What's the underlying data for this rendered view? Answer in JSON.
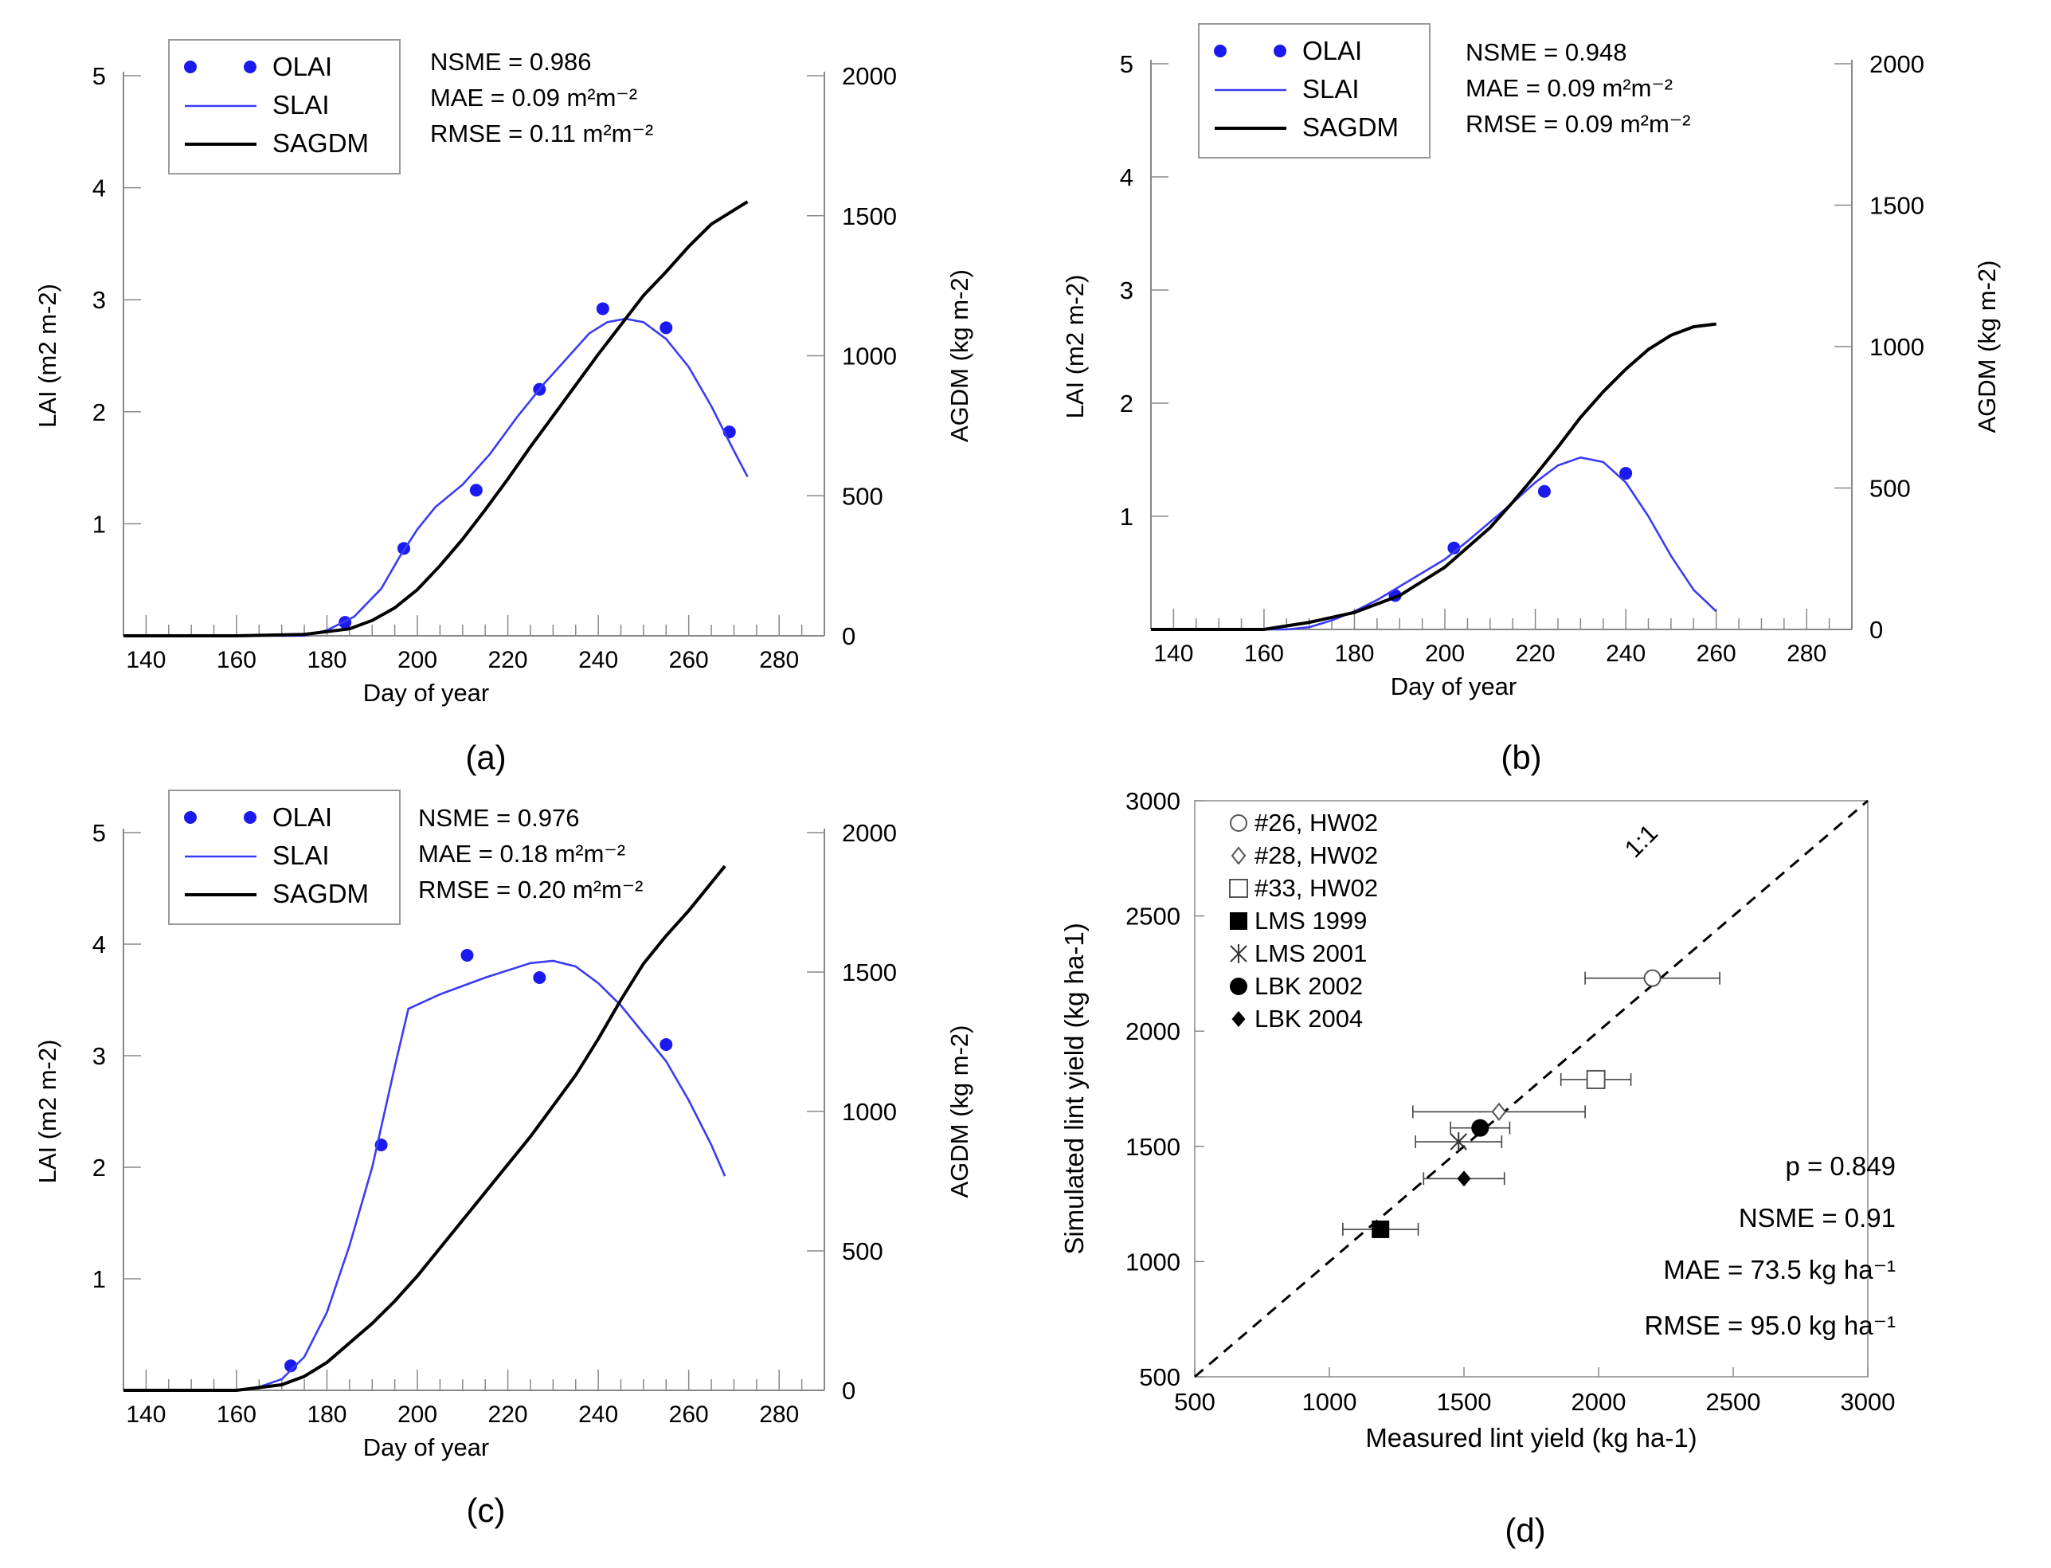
{
  "figure": {
    "panels": [
      "(a)",
      "(b)",
      "(c)",
      "(d)"
    ]
  },
  "colors": {
    "observed": "#1a1aee",
    "slai": "#3b3bf5",
    "sagdm": "#000000",
    "axis": "#888888"
  },
  "chart_data": [
    {
      "id": "a",
      "type": "line",
      "panel_label": "(a)",
      "xlabel": "Day of year",
      "ylabel_left": "LAI (m2 m-2)",
      "ylabel_right": "AGDM (kg m-2)",
      "xlim": [
        135,
        290
      ],
      "ylim_left": [
        0,
        5
      ],
      "ylim_right": [
        0,
        2000
      ],
      "xticks": [
        140,
        160,
        180,
        200,
        220,
        240,
        260,
        280
      ],
      "yticks_left": [
        1,
        2,
        3,
        4,
        5
      ],
      "yticks_right": [
        0,
        500,
        1000,
        1500,
        2000
      ],
      "legend": [
        "OLAI",
        "SLAI",
        "SAGDM"
      ],
      "stats": [
        "NSME = 0.986",
        "MAE = 0.09 m²m⁻²",
        "RMSE = 0.11 m²m⁻²"
      ],
      "series": [
        {
          "name": "OLAI",
          "kind": "points",
          "axis": "left",
          "x": [
            184,
            197,
            213,
            227,
            241,
            255,
            269
          ],
          "y": [
            0.12,
            0.78,
            1.3,
            2.2,
            2.92,
            2.75,
            1.82
          ]
        },
        {
          "name": "SLAI",
          "kind": "line",
          "axis": "left",
          "x": [
            135,
            160,
            175,
            180,
            186,
            192,
            196,
            200,
            204,
            210,
            216,
            222,
            228,
            234,
            238,
            242,
            246,
            250,
            255,
            260,
            265,
            270,
            273
          ],
          "y": [
            0,
            0,
            0,
            0.05,
            0.17,
            0.42,
            0.7,
            0.95,
            1.15,
            1.35,
            1.62,
            1.95,
            2.25,
            2.52,
            2.7,
            2.8,
            2.83,
            2.8,
            2.65,
            2.4,
            2.05,
            1.65,
            1.42
          ]
        },
        {
          "name": "SAGDM",
          "kind": "line",
          "axis": "right",
          "x": [
            135,
            160,
            175,
            185,
            190,
            195,
            200,
            205,
            210,
            215,
            220,
            225,
            230,
            235,
            240,
            245,
            250,
            255,
            260,
            265,
            270,
            273
          ],
          "y": [
            0,
            0,
            5,
            25,
            55,
            100,
            165,
            250,
            345,
            450,
            560,
            675,
            785,
            895,
            1005,
            1110,
            1215,
            1300,
            1390,
            1470,
            1520,
            1550
          ]
        }
      ]
    },
    {
      "id": "b",
      "type": "line",
      "panel_label": "(b)",
      "xlabel": "Day of year",
      "ylabel_left": "LAI (m2 m-2)",
      "ylabel_right": "AGDM (kg m-2)",
      "xlim": [
        135,
        290
      ],
      "ylim_left": [
        0,
        5
      ],
      "ylim_right": [
        0,
        2000
      ],
      "xticks": [
        140,
        160,
        180,
        200,
        220,
        240,
        260,
        280
      ],
      "yticks_left": [
        1,
        2,
        3,
        4,
        5
      ],
      "yticks_right": [
        0,
        500,
        1000,
        1500,
        2000
      ],
      "legend": [
        "OLAI",
        "SLAI",
        "SAGDM"
      ],
      "stats": [
        "NSME = 0.948",
        "MAE = 0.09 m²m⁻²",
        "RMSE = 0.09 m²m⁻²"
      ],
      "series": [
        {
          "name": "OLAI",
          "kind": "points",
          "axis": "left",
          "x": [
            189,
            202,
            222,
            240
          ],
          "y": [
            0.3,
            0.72,
            1.22,
            1.38
          ]
        },
        {
          "name": "SLAI",
          "kind": "line",
          "axis": "left",
          "x": [
            135,
            165,
            170,
            175,
            180,
            185,
            190,
            195,
            200,
            205,
            210,
            215,
            220,
            225,
            230,
            235,
            240,
            245,
            250,
            255,
            260
          ],
          "y": [
            0,
            0,
            0.02,
            0.08,
            0.16,
            0.26,
            0.38,
            0.5,
            0.62,
            0.78,
            0.95,
            1.12,
            1.3,
            1.45,
            1.52,
            1.48,
            1.3,
            1.0,
            0.65,
            0.35,
            0.16
          ]
        },
        {
          "name": "SAGDM",
          "kind": "line",
          "axis": "right",
          "x": [
            135,
            160,
            170,
            180,
            190,
            200,
            210,
            215,
            220,
            225,
            230,
            235,
            240,
            245,
            250,
            255,
            260
          ],
          "y": [
            0,
            0,
            25,
            60,
            120,
            220,
            360,
            450,
            545,
            645,
            750,
            840,
            920,
            990,
            1040,
            1070,
            1080
          ]
        }
      ]
    },
    {
      "id": "c",
      "type": "line",
      "panel_label": "(c)",
      "xlabel": "Day of year",
      "ylabel_left": "LAI (m2 m-2)",
      "ylabel_right": "AGDM (kg m-2)",
      "xlim": [
        135,
        290
      ],
      "ylim_left": [
        0,
        5
      ],
      "ylim_right": [
        0,
        2000
      ],
      "xticks": [
        140,
        160,
        180,
        200,
        220,
        240,
        260,
        280
      ],
      "yticks_left": [
        1,
        2,
        3,
        4,
        5
      ],
      "yticks_right": [
        0,
        500,
        1000,
        1500,
        2000
      ],
      "legend": [
        "OLAI",
        "SLAI",
        "SAGDM"
      ],
      "stats": [
        "NSME = 0.976",
        "MAE = 0.18 m²m⁻²",
        "RMSE = 0.20 m²m⁻²"
      ],
      "series": [
        {
          "name": "OLAI",
          "kind": "points",
          "axis": "left",
          "x": [
            172,
            192,
            211,
            227,
            255
          ],
          "y": [
            0.22,
            2.2,
            3.9,
            3.7,
            3.1
          ]
        },
        {
          "name": "SLAI",
          "kind": "line",
          "axis": "left",
          "x": [
            135,
            160,
            165,
            170,
            175,
            180,
            185,
            190,
            195,
            198,
            205,
            215,
            225,
            230,
            235,
            240,
            245,
            250,
            255,
            260,
            265,
            268
          ],
          "y": [
            0,
            0,
            0.03,
            0.1,
            0.3,
            0.7,
            1.3,
            2.0,
            2.9,
            3.42,
            3.55,
            3.7,
            3.83,
            3.85,
            3.8,
            3.65,
            3.45,
            3.2,
            2.95,
            2.6,
            2.2,
            1.92
          ]
        },
        {
          "name": "SAGDM",
          "kind": "line",
          "axis": "right",
          "x": [
            135,
            160,
            170,
            175,
            180,
            185,
            190,
            195,
            200,
            205,
            210,
            215,
            220,
            225,
            230,
            235,
            240,
            245,
            250,
            255,
            260,
            265,
            268
          ],
          "y": [
            0,
            0,
            20,
            50,
            100,
            170,
            240,
            320,
            410,
            510,
            610,
            710,
            810,
            910,
            1020,
            1130,
            1260,
            1400,
            1530,
            1630,
            1720,
            1820,
            1880
          ]
        }
      ]
    },
    {
      "id": "d",
      "type": "scatter",
      "panel_label": "(d)",
      "xlabel": "Measured lint yield (kg ha-1)",
      "ylabel": "Simulated lint yield (kg ha-1)",
      "xlim": [
        500,
        3000
      ],
      "ylim": [
        500,
        3000
      ],
      "xticks": [
        500,
        1000,
        1500,
        2000,
        2500,
        3000
      ],
      "yticks": [
        500,
        1000,
        1500,
        2000,
        2500,
        3000
      ],
      "line_label": "1:1",
      "stats": [
        "p = 0.849",
        "NSME = 0.91",
        "MAE = 73.5 kg ha⁻¹",
        "RMSE = 95.0 kg ha⁻¹"
      ],
      "series": [
        {
          "name": "#26, HW02",
          "marker": "open-circle",
          "x": 2200,
          "y": 2230,
          "xerr": 250
        },
        {
          "name": "#28, HW02",
          "marker": "open-diamond",
          "x": 1630,
          "y": 1650,
          "xerr": 320
        },
        {
          "name": "#33, HW02",
          "marker": "open-square",
          "x": 1990,
          "y": 1790,
          "xerr": 130
        },
        {
          "name": "LMS 1999",
          "marker": "filled-square",
          "x": 1190,
          "y": 1140,
          "xerr": 140
        },
        {
          "name": "LMS 2001",
          "marker": "asterisk",
          "x": 1480,
          "y": 1520,
          "xerr": 160
        },
        {
          "name": "LBK 2002",
          "marker": "filled-circle",
          "x": 1560,
          "y": 1580,
          "xerr": 110
        },
        {
          "name": "LBK 2004",
          "marker": "filled-diamond",
          "x": 1500,
          "y": 1360,
          "xerr": 150
        }
      ]
    }
  ]
}
